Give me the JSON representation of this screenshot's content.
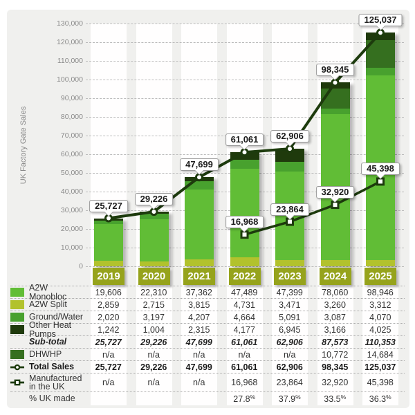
{
  "colors": {
    "panel_bg": "#f0f0ee",
    "band": "#fffefe",
    "a2w_monobloc": "#61bd36",
    "a2w_split": "#b2c22d",
    "ground_water": "#48a12e",
    "other_heat_pumps": "#1f3a0c",
    "dhwhp": "#356f1f",
    "line": "#1d3b0d",
    "year_box": "#96a31c"
  },
  "chart_data": {
    "type": "bar",
    "subtype": "stacked-bars-with-line-overlays",
    "title": "",
    "xlabel": "",
    "ylabel": "UK Factory Gate Sales",
    "ylim": [
      0,
      130000
    ],
    "ytick_step": 10000,
    "ytick_labels": [
      "0",
      "10,000",
      "20,000",
      "30,000",
      "40,000",
      "50,000",
      "60,000",
      "70,000",
      "80,000",
      "90,000",
      "100,000",
      "110,000",
      "120,000",
      "130,000"
    ],
    "grid": "dashed-horizontal",
    "categories": [
      "2019",
      "2020",
      "2021",
      "2022",
      "2023",
      "2024",
      "2025"
    ],
    "stack_order_bottom_to_top": [
      "A2W Split",
      "A2W Monobloc",
      "Ground/Water",
      "DHWHP",
      "Other Heat Pumps"
    ],
    "bar_series": [
      {
        "name": "A2W Split",
        "color_key": "a2w_split",
        "values": [
          2859,
          2715,
          3815,
          4731,
          3471,
          3260,
          3312
        ]
      },
      {
        "name": "A2W Monobloc",
        "color_key": "a2w_monobloc",
        "values": [
          19606,
          22310,
          37362,
          47489,
          47399,
          78060,
          98946
        ]
      },
      {
        "name": "Ground/Water",
        "color_key": "ground_water",
        "values": [
          2020,
          3197,
          4207,
          4664,
          5091,
          3087,
          4070
        ]
      },
      {
        "name": "DHWHP",
        "color_key": "dhwhp",
        "values": [
          0,
          0,
          0,
          0,
          0,
          10772,
          14684
        ]
      },
      {
        "name": "Other Heat Pumps",
        "color_key": "other_heat_pumps",
        "values": [
          1242,
          1004,
          2315,
          4177,
          6945,
          3166,
          4025
        ]
      }
    ],
    "line_series": [
      {
        "name": "Total Sales",
        "marker": "circle",
        "values": [
          25727,
          29226,
          47699,
          61061,
          62906,
          98345,
          125037
        ],
        "labels": [
          "25,727",
          "29,226",
          "47,699",
          "61,061",
          "62,906",
          "98,345",
          "125,037"
        ]
      },
      {
        "name": "Manufactured in the UK",
        "marker": "square",
        "values": [
          null,
          null,
          null,
          16968,
          23864,
          32920,
          45398
        ],
        "labels": [
          null,
          null,
          null,
          "16,968",
          "23,864",
          "32,920",
          "45,398"
        ]
      }
    ]
  },
  "table": {
    "columns": [
      "2019",
      "2020",
      "2021",
      "2022",
      "2023",
      "2024",
      "2025"
    ],
    "rows": [
      {
        "label": "A2W Monobloc",
        "swatch": "a2w_monobloc",
        "style": "normal",
        "values": [
          "19,606",
          "22,310",
          "37,362",
          "47,489",
          "47,399",
          "78,060",
          "98,946"
        ]
      },
      {
        "label": "A2W Split",
        "swatch": "a2w_split",
        "style": "normal",
        "values": [
          "2,859",
          "2,715",
          "3,815",
          "4,731",
          "3,471",
          "3,260",
          "3,312"
        ]
      },
      {
        "label": "Ground/Water",
        "swatch": "ground_water",
        "style": "normal",
        "values": [
          "2,020",
          "3,197",
          "4,207",
          "4,664",
          "5,091",
          "3,087",
          "4,070"
        ]
      },
      {
        "label": "Other Heat Pumps",
        "swatch": "other_heat_pumps",
        "style": "normal",
        "values": [
          "1,242",
          "1,004",
          "2,315",
          "4,177",
          "6,945",
          "3,166",
          "4,025"
        ]
      },
      {
        "label": "Sub-total",
        "style": "subtotal",
        "values": [
          "25,727",
          "29,226",
          "47,699",
          "61,061",
          "62,906",
          "87,573",
          "110,353"
        ]
      },
      {
        "label": "DHWHP",
        "swatch": "dhwhp",
        "style": "normal",
        "values": [
          "n/a",
          "n/a",
          "n/a",
          "n/a",
          "n/a",
          "10,772",
          "14,684"
        ]
      },
      {
        "label": "Total Sales",
        "style": "total",
        "marker": "circle",
        "values": [
          "25,727",
          "29,226",
          "47,699",
          "61,061",
          "62,906",
          "98,345",
          "125,037"
        ]
      },
      {
        "label": "Manufactured\nin the UK",
        "style": "normal",
        "marker": "square",
        "values": [
          "n/a",
          "n/a",
          "n/a",
          "16,968",
          "23,864",
          "32,920",
          "45,398"
        ]
      },
      {
        "label": "% UK made",
        "style": "normal",
        "values": [
          "",
          "",
          "",
          "27.8%",
          "37.9%",
          "33.5%",
          "36.3%"
        ]
      }
    ]
  }
}
